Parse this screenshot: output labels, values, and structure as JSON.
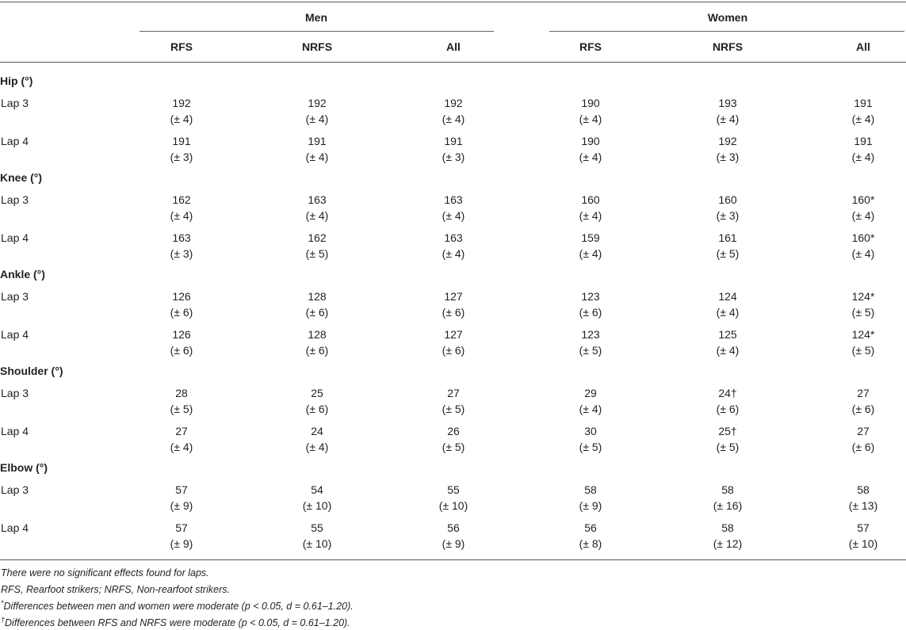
{
  "groups": [
    {
      "label": "Men",
      "columns": [
        "RFS",
        "NRFS",
        "All"
      ]
    },
    {
      "label": "Women",
      "columns": [
        "RFS",
        "NRFS",
        "All"
      ]
    }
  ],
  "sections": [
    {
      "label": "Hip (°)",
      "rows": [
        {
          "label": "Lap 3",
          "cells": [
            [
              "192",
              "(± 4)"
            ],
            [
              "192",
              "(± 4)"
            ],
            [
              "192",
              "(± 4)"
            ],
            [
              "190",
              "(± 4)"
            ],
            [
              "193",
              "(± 4)"
            ],
            [
              "191",
              "(± 4)"
            ]
          ]
        },
        {
          "label": "Lap 4",
          "cells": [
            [
              "191",
              "(± 3)"
            ],
            [
              "191",
              "(± 4)"
            ],
            [
              "191",
              "(± 3)"
            ],
            [
              "190",
              "(± 4)"
            ],
            [
              "192",
              "(± 3)"
            ],
            [
              "191",
              "(± 4)"
            ]
          ]
        }
      ]
    },
    {
      "label": "Knee (°)",
      "rows": [
        {
          "label": "Lap 3",
          "cells": [
            [
              "162",
              "(± 4)"
            ],
            [
              "163",
              "(± 4)"
            ],
            [
              "163",
              "(± 4)"
            ],
            [
              "160",
              "(± 4)"
            ],
            [
              "160",
              "(± 3)"
            ],
            [
              "160*",
              "(± 4)"
            ]
          ]
        },
        {
          "label": "Lap 4",
          "cells": [
            [
              "163",
              "(± 3)"
            ],
            [
              "162",
              "(± 5)"
            ],
            [
              "163",
              "(± 4)"
            ],
            [
              "159",
              "(± 4)"
            ],
            [
              "161",
              "(± 5)"
            ],
            [
              "160*",
              "(± 4)"
            ]
          ]
        }
      ]
    },
    {
      "label": "Ankle (°)",
      "rows": [
        {
          "label": "Lap 3",
          "cells": [
            [
              "126",
              "(± 6)"
            ],
            [
              "128",
              "(± 6)"
            ],
            [
              "127",
              "(± 6)"
            ],
            [
              "123",
              "(± 6)"
            ],
            [
              "124",
              "(± 4)"
            ],
            [
              "124*",
              "(± 5)"
            ]
          ]
        },
        {
          "label": "Lap 4",
          "cells": [
            [
              "126",
              "(± 6)"
            ],
            [
              "128",
              "(± 6)"
            ],
            [
              "127",
              "(± 6)"
            ],
            [
              "123",
              "(± 5)"
            ],
            [
              "125",
              "(± 4)"
            ],
            [
              "124*",
              "(± 5)"
            ]
          ]
        }
      ]
    },
    {
      "label": "Shoulder (°)",
      "rows": [
        {
          "label": "Lap 3",
          "cells": [
            [
              "28",
              "(± 5)"
            ],
            [
              "25",
              "(± 6)"
            ],
            [
              "27",
              "(± 5)"
            ],
            [
              "29",
              "(± 4)"
            ],
            [
              "24†",
              "(± 6)"
            ],
            [
              "27",
              "(± 6)"
            ]
          ]
        },
        {
          "label": "Lap 4",
          "cells": [
            [
              "27",
              "(± 4)"
            ],
            [
              "24",
              "(± 4)"
            ],
            [
              "26",
              "(± 5)"
            ],
            [
              "30",
              "(± 5)"
            ],
            [
              "25†",
              "(± 5)"
            ],
            [
              "27",
              "(± 6)"
            ]
          ]
        }
      ]
    },
    {
      "label": "Elbow (°)",
      "rows": [
        {
          "label": "Lap 3",
          "cells": [
            [
              "57",
              "(± 9)"
            ],
            [
              "54",
              "(± 10)"
            ],
            [
              "55",
              "(± 10)"
            ],
            [
              "58",
              "(± 9)"
            ],
            [
              "58",
              "(± 16)"
            ],
            [
              "58",
              "(± 13)"
            ]
          ]
        },
        {
          "label": "Lap 4",
          "cells": [
            [
              "57",
              "(± 9)"
            ],
            [
              "55",
              "(± 10)"
            ],
            [
              "56",
              "(± 9)"
            ],
            [
              "56",
              "(± 8)"
            ],
            [
              "58",
              "(± 12)"
            ],
            [
              "57",
              "(± 10)"
            ]
          ]
        }
      ]
    }
  ],
  "footnotes": {
    "laps": "There were no significant effects found for laps.",
    "abbrev": "RFS, Rearfoot strikers; NRFS, Non-rearfoot strikers.",
    "star_mark": "*",
    "star": "Differences between men and women were moderate (p < 0.05, d = 0.61–1.20).",
    "dagger_mark": "†",
    "dagger": "Differences between RFS and NRFS were moderate (p < 0.05, d = 0.61–1.20)."
  }
}
